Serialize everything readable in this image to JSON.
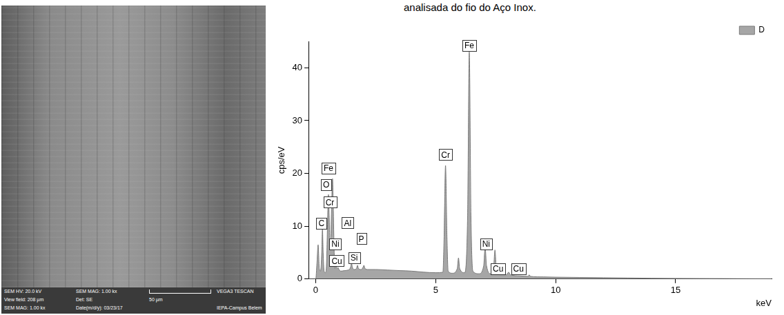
{
  "caption": "analisada do fio do Aço Inox.",
  "sem_image": {
    "info_bar": [
      [
        "SEM HV: 20.0 kV",
        "SEM MAG: 1.00 kx",
        "VEGA3 TESCAN"
      ],
      [
        "View field: 208 µm",
        "Det: SE",
        "50 µm"
      ],
      [
        "SEM MAG: 1.00 kx",
        "Date(m/d/y): 03/23/17",
        "IEPA-Campus Belem"
      ]
    ]
  },
  "chart_data": {
    "type": "line",
    "x_label": "keV",
    "y_label": "cps/eV",
    "x": [
      -0.3,
      0,
      0.05,
      0.1,
      0.15,
      0.2,
      0.25,
      0.28,
      0.31,
      0.35,
      0.4,
      0.45,
      0.5,
      0.53,
      0.56,
      0.6,
      0.63,
      0.67,
      0.7,
      0.73,
      0.77,
      0.8,
      0.85,
      0.88,
      0.93,
      0.97,
      1.05,
      1.2,
      1.35,
      1.45,
      1.49,
      1.53,
      1.6,
      1.7,
      1.74,
      1.78,
      1.9,
      1.97,
      2.01,
      2.05,
      2.2,
      2.5,
      3,
      3.5,
      4,
      4.5,
      5,
      5.3,
      5.35,
      5.41,
      5.47,
      5.52,
      5.7,
      5.9,
      5.95,
      6,
      6.2,
      6.33,
      6.4,
      6.47,
      6.55,
      6.8,
      7,
      7.06,
      7.12,
      7.3,
      7.42,
      7.47,
      7.52,
      7.7,
      7.95,
      8.04,
      8.12,
      8.5,
      8.85,
      8.9,
      8.95,
      9.5,
      10,
      11,
      12,
      13,
      14,
      15,
      16,
      17,
      18,
      19
    ],
    "series": [
      {
        "name": "D",
        "color": "#a6a6a6",
        "values": [
          0,
          0,
          3,
          6.5,
          2,
          1.5,
          5,
          9.5,
          5,
          1.5,
          1.2,
          3,
          12,
          16,
          12,
          6,
          8,
          15,
          19,
          14,
          5,
          2,
          2.5,
          2,
          2.2,
          1.8,
          1.5,
          1.6,
          1.7,
          2.2,
          3,
          2.2,
          1.8,
          2,
          2.6,
          2,
          1.8,
          2.2,
          2.6,
          2,
          1.8,
          1.8,
          1.7,
          1.6,
          1.5,
          1.3,
          1.2,
          1.3,
          8,
          21.5,
          8,
          1.5,
          1.1,
          2,
          4,
          2,
          1.2,
          12,
          43,
          12,
          1.5,
          1,
          2.5,
          6,
          2.5,
          1,
          2.5,
          5.5,
          2.5,
          0.8,
          0.8,
          1.3,
          0.8,
          0.6,
          0.5,
          0.8,
          0.5,
          0.4,
          0.35,
          0.3,
          0.25,
          0.2,
          0.15,
          0.12,
          0.1,
          0.08,
          0.06,
          0.05
        ]
      }
    ],
    "xlim": [
      -0.3,
      19
    ],
    "xticks": [
      0,
      5,
      10,
      15
    ],
    "ylim": [
      0,
      45
    ],
    "yticks": [
      0,
      10,
      20,
      30,
      40
    ],
    "grid": false,
    "legend": "upper right",
    "peak_labels": [
      {
        "text": "Fe",
        "x": 6.4,
        "y": 43.2
      },
      {
        "text": "Cr",
        "x": 5.41,
        "y": 22.5
      },
      {
        "text": "Fe",
        "x": 0.53,
        "y": 20
      },
      {
        "text": "O",
        "x": 0.44,
        "y": 16.8
      },
      {
        "text": "Cr",
        "x": 0.59,
        "y": 13.5
      },
      {
        "text": "C",
        "x": 0.24,
        "y": 9.5
      },
      {
        "text": "Al",
        "x": 1.33,
        "y": 9.6
      },
      {
        "text": "Ni",
        "x": 0.82,
        "y": 5.6
      },
      {
        "text": "P",
        "x": 1.9,
        "y": 6.6
      },
      {
        "text": "Si",
        "x": 1.6,
        "y": 3
      },
      {
        "text": "Cu",
        "x": 0.88,
        "y": 2.4
      },
      {
        "text": "Ni",
        "x": 7.1,
        "y": 5.6
      },
      {
        "text": "Cu",
        "x": 7.6,
        "y": 0.9
      },
      {
        "text": "Cu",
        "x": 8.45,
        "y": 0.9
      }
    ]
  }
}
